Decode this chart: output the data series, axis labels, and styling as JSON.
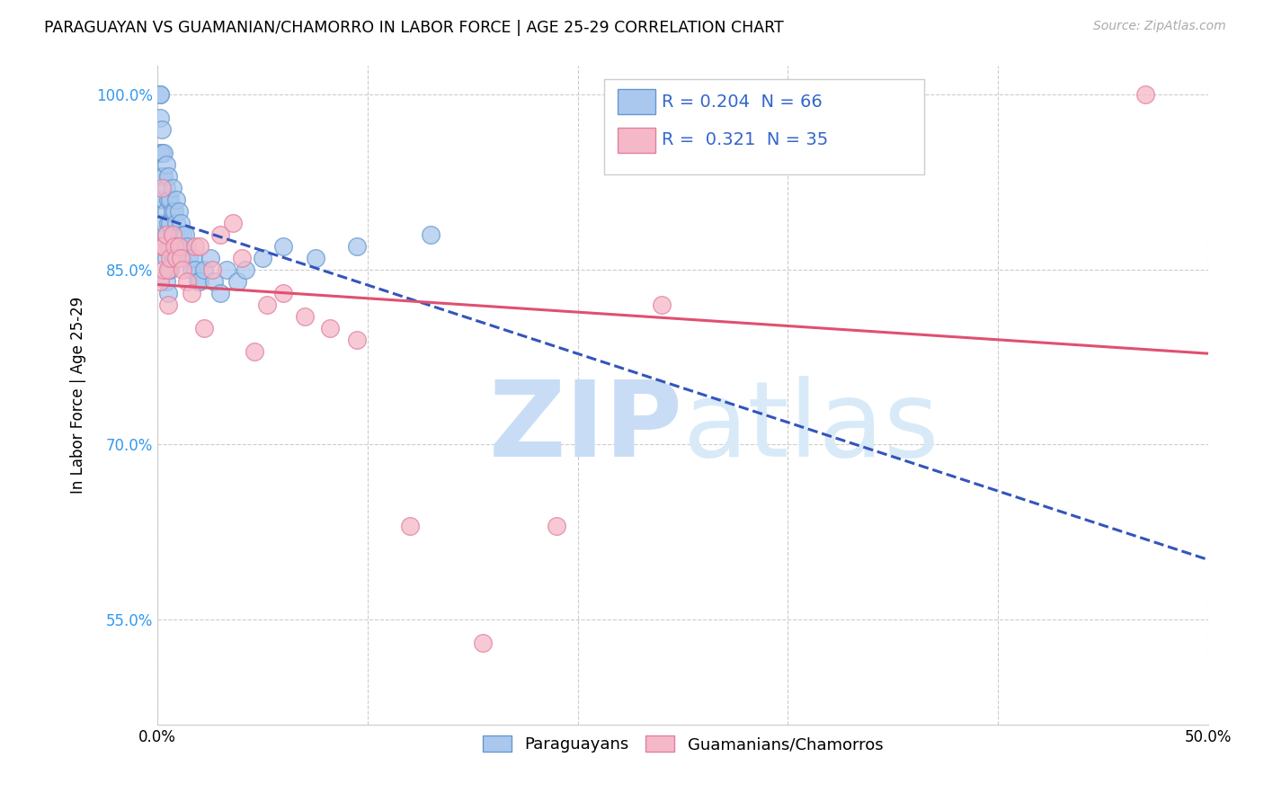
{
  "title": "PARAGUAYAN VS GUAMANIAN/CHAMORRO IN LABOR FORCE | AGE 25-29 CORRELATION CHART",
  "source": "Source: ZipAtlas.com",
  "ylabel": "In Labor Force | Age 25-29",
  "xlim": [
    0.0,
    0.5
  ],
  "ylim": [
    0.46,
    1.025
  ],
  "xticks": [
    0.0,
    0.1,
    0.2,
    0.3,
    0.4,
    0.5
  ],
  "xtick_labels": [
    "0.0%",
    "",
    "",
    "",
    "",
    "50.0%"
  ],
  "yticks": [
    0.55,
    0.7,
    0.85,
    1.0
  ],
  "ytick_labels": [
    "55.0%",
    "70.0%",
    "85.0%",
    "100.0%"
  ],
  "grid_color": "#cccccc",
  "background_color": "#ffffff",
  "paraguayan_color": "#aac8ee",
  "paraguayan_edge": "#6699cc",
  "guamanian_color": "#f5b8c8",
  "guamanian_edge": "#e080a0",
  "R_paraguayan": 0.204,
  "N_paraguayan": 66,
  "R_guamanian": 0.321,
  "N_guamanian": 35,
  "legend_color": "#3366cc",
  "trend_blue_color": "#3355bb",
  "trend_pink_color": "#e05070",
  "paraguayan_x": [
    0.001,
    0.001,
    0.001,
    0.001,
    0.002,
    0.002,
    0.002,
    0.002,
    0.002,
    0.003,
    0.003,
    0.003,
    0.003,
    0.003,
    0.004,
    0.004,
    0.004,
    0.004,
    0.004,
    0.004,
    0.005,
    0.005,
    0.005,
    0.005,
    0.005,
    0.005,
    0.006,
    0.006,
    0.006,
    0.006,
    0.007,
    0.007,
    0.007,
    0.007,
    0.008,
    0.008,
    0.008,
    0.009,
    0.009,
    0.009,
    0.01,
    0.01,
    0.011,
    0.011,
    0.012,
    0.012,
    0.013,
    0.014,
    0.015,
    0.016,
    0.017,
    0.018,
    0.019,
    0.02,
    0.022,
    0.025,
    0.027,
    0.03,
    0.033,
    0.038,
    0.042,
    0.05,
    0.06,
    0.075,
    0.095,
    0.13
  ],
  "paraguayan_y": [
    1.0,
    1.0,
    0.98,
    0.95,
    0.97,
    0.95,
    0.93,
    0.91,
    0.88,
    0.95,
    0.93,
    0.91,
    0.89,
    0.87,
    0.94,
    0.92,
    0.9,
    0.88,
    0.86,
    0.84,
    0.93,
    0.91,
    0.89,
    0.87,
    0.85,
    0.83,
    0.91,
    0.89,
    0.87,
    0.85,
    0.92,
    0.9,
    0.88,
    0.86,
    0.9,
    0.88,
    0.86,
    0.91,
    0.89,
    0.87,
    0.9,
    0.88,
    0.89,
    0.87,
    0.88,
    0.86,
    0.88,
    0.87,
    0.86,
    0.85,
    0.86,
    0.85,
    0.84,
    0.84,
    0.85,
    0.86,
    0.84,
    0.83,
    0.85,
    0.84,
    0.85,
    0.86,
    0.87,
    0.86,
    0.87,
    0.88
  ],
  "guamanian_x": [
    0.001,
    0.002,
    0.002,
    0.003,
    0.003,
    0.004,
    0.005,
    0.005,
    0.006,
    0.007,
    0.008,
    0.009,
    0.01,
    0.011,
    0.012,
    0.014,
    0.016,
    0.018,
    0.02,
    0.022,
    0.026,
    0.03,
    0.036,
    0.04,
    0.046,
    0.052,
    0.06,
    0.07,
    0.082,
    0.095,
    0.12,
    0.155,
    0.19,
    0.24,
    0.47
  ],
  "guamanian_y": [
    0.84,
    0.92,
    0.87,
    0.85,
    0.87,
    0.88,
    0.85,
    0.82,
    0.86,
    0.88,
    0.87,
    0.86,
    0.87,
    0.86,
    0.85,
    0.84,
    0.83,
    0.87,
    0.87,
    0.8,
    0.85,
    0.88,
    0.89,
    0.86,
    0.78,
    0.82,
    0.83,
    0.81,
    0.8,
    0.79,
    0.63,
    0.53,
    0.63,
    0.82,
    1.0
  ],
  "watermark_zip": "ZIP",
  "watermark_atlas": "atlas",
  "watermark_color": "#ddeeff",
  "watermark_fontsize": 85
}
